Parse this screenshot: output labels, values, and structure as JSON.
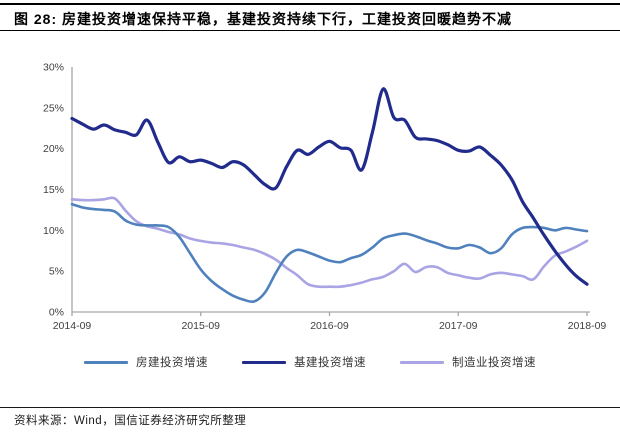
{
  "figure": {
    "title": "图 28: 房建投资增速保持平稳，基建投资持续下行，工建投资回暖趋势不减",
    "source": "资料来源：Wind，国信证券经济研究所整理"
  },
  "colors": {
    "housing_line": "#4F81BD",
    "infrastructure_line": "#212B8C",
    "manufacturing_line": "#A9A4E3",
    "axis": "#A6A6A6",
    "tick_text": "#404040"
  },
  "chart_data": {
    "type": "line",
    "title": "",
    "xlabel": "",
    "ylabel": "",
    "ylim": [
      0,
      30
    ],
    "grid": false,
    "legend_position": "bottom",
    "y_tick_labels": [
      "0%",
      "5%",
      "10%",
      "15%",
      "20%",
      "25%",
      "30%"
    ],
    "x_tick_labels": [
      "2014-09",
      "2015-09",
      "2016-09",
      "2017-09",
      "2018-09"
    ],
    "x": [
      "2014-09",
      "2014-10",
      "2014-11",
      "2014-12",
      "2015-01",
      "2015-02",
      "2015-03",
      "2015-04",
      "2015-05",
      "2015-06",
      "2015-07",
      "2015-08",
      "2015-09",
      "2015-10",
      "2015-11",
      "2015-12",
      "2016-01",
      "2016-02",
      "2016-03",
      "2016-04",
      "2016-05",
      "2016-06",
      "2016-07",
      "2016-08",
      "2016-09",
      "2016-10",
      "2016-11",
      "2016-12",
      "2017-01",
      "2017-02",
      "2017-03",
      "2017-04",
      "2017-05",
      "2017-06",
      "2017-07",
      "2017-08",
      "2017-09",
      "2017-10",
      "2017-11",
      "2017-12",
      "2018-01",
      "2018-02",
      "2018-03",
      "2018-04",
      "2018-05",
      "2018-06",
      "2018-07",
      "2018-08",
      "2018-09"
    ],
    "series": [
      {
        "name": "房建投资增速",
        "color": "#4F81BD",
        "values": [
          13.2,
          12.8,
          12.6,
          12.5,
          12.3,
          11.2,
          10.7,
          10.6,
          10.6,
          10.4,
          9.2,
          7.2,
          5.2,
          3.8,
          2.8,
          2.0,
          1.5,
          1.3,
          2.4,
          4.8,
          6.8,
          7.6,
          7.3,
          6.8,
          6.3,
          6.1,
          6.6,
          7.0,
          7.9,
          9.0,
          9.4,
          9.6,
          9.3,
          8.8,
          8.4,
          7.9,
          7.8,
          8.2,
          7.9,
          7.2,
          7.8,
          9.5,
          10.3,
          10.4,
          10.3,
          10.0,
          10.3,
          10.1,
          9.9
        ]
      },
      {
        "name": "基建投资增速",
        "color": "#212B8C",
        "values": [
          23.7,
          23.0,
          22.4,
          22.9,
          22.3,
          22.0,
          21.7,
          23.5,
          20.8,
          18.3,
          19.0,
          18.4,
          18.6,
          18.2,
          17.7,
          18.4,
          18.0,
          16.8,
          15.6,
          15.2,
          17.8,
          19.8,
          19.3,
          20.2,
          20.9,
          20.1,
          19.8,
          17.4,
          22.0,
          27.3,
          23.8,
          23.5,
          21.4,
          21.2,
          21.0,
          20.5,
          19.8,
          19.7,
          20.2,
          19.2,
          18.0,
          16.2,
          13.5,
          11.5,
          9.4,
          7.5,
          5.8,
          4.4,
          3.4
        ]
      },
      {
        "name": "制造业投资增速",
        "color": "#A9A4E3",
        "values": [
          13.8,
          13.7,
          13.7,
          13.8,
          13.9,
          12.4,
          11.1,
          10.5,
          10.2,
          9.8,
          9.5,
          9.0,
          8.7,
          8.5,
          8.4,
          8.2,
          7.9,
          7.6,
          7.1,
          6.4,
          5.4,
          4.5,
          3.4,
          3.1,
          3.1,
          3.1,
          3.3,
          3.6,
          4.0,
          4.3,
          5.0,
          5.9,
          4.9,
          5.5,
          5.5,
          4.8,
          4.5,
          4.2,
          4.1,
          4.6,
          4.8,
          4.6,
          4.4,
          4.0,
          5.6,
          6.9,
          7.4,
          8.0,
          8.7
        ]
      }
    ]
  }
}
